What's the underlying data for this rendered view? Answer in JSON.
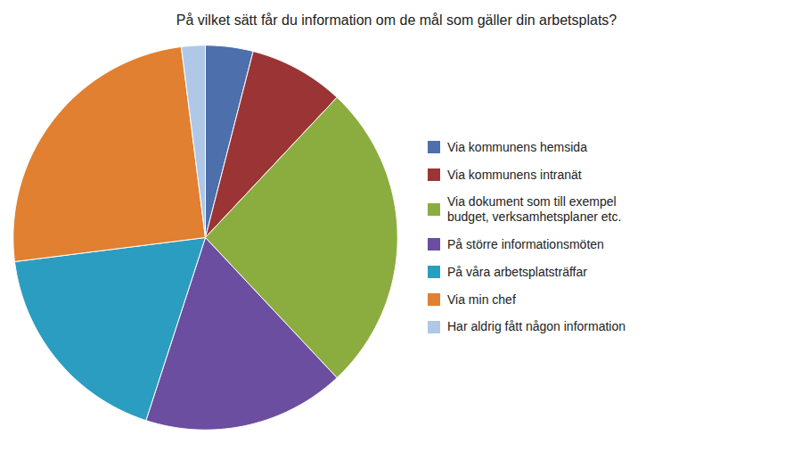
{
  "chart_data": {
    "type": "pie",
    "title": "På vilket sätt får du information om de mål som gäller din arbetsplats?",
    "categories": [
      "Via kommunens hemsida",
      "Via kommunens intranät",
      "Via dokument som till exempel\nbudget, verksamhetsplaner etc.",
      "På större informationsmöten",
      "På våra arbetsplatsträffar",
      "Via min chef",
      "Har aldrig fått någon information"
    ],
    "values": [
      4,
      8,
      26,
      17,
      18,
      25,
      2
    ],
    "colors": [
      "#4D6FAC",
      "#9B3535",
      "#8BAD3F",
      "#6B4EA0",
      "#2B9DC0",
      "#E08030",
      "#AFC8E8"
    ],
    "legend": "right"
  }
}
